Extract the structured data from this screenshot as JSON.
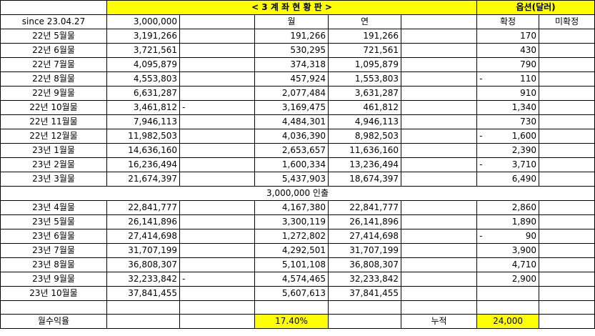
{
  "header": {
    "title": "< 3 계 좌 현 황 판 >",
    "options_title": "옵션(달러)",
    "since_label": "since 23.04.27",
    "base_amount": "3,000,000",
    "col_month": "월",
    "col_year": "연",
    "col_confirmed": "확정",
    "col_unconfirmed": "미확정"
  },
  "rows_a": [
    {
      "label": "22년 5월물",
      "balance": "3,191,266",
      "m_neg": "",
      "month": "191,266",
      "year": "191,266",
      "o_neg": "",
      "confirmed": "170"
    },
    {
      "label": "22년 6월물",
      "balance": "3,721,561",
      "m_neg": "",
      "month": "530,295",
      "year": "721,561",
      "o_neg": "",
      "confirmed": "430"
    },
    {
      "label": "22년 7월물",
      "balance": "4,095,879",
      "m_neg": "",
      "month": "374,318",
      "year": "1,095,879",
      "o_neg": "",
      "confirmed": "790"
    },
    {
      "label": "22년 8월물",
      "balance": "4,553,803",
      "m_neg": "",
      "month": "457,924",
      "year": "1,553,803",
      "o_neg": "-",
      "confirmed": "110"
    },
    {
      "label": "22년 9월물",
      "balance": "6,631,287",
      "m_neg": "",
      "month": "2,077,484",
      "year": "3,631,287",
      "o_neg": "",
      "confirmed": "910"
    },
    {
      "label": "22년 10월물",
      "balance": "3,461,812",
      "m_neg": "-",
      "month": "3,169,475",
      "year": "461,812",
      "o_neg": "",
      "confirmed": "1,340"
    },
    {
      "label": "22년 11월물",
      "balance": "7,946,113",
      "m_neg": "",
      "month": "4,484,301",
      "year": "4,946,113",
      "o_neg": "",
      "confirmed": "730"
    },
    {
      "label": "22년 12월물",
      "balance": "11,982,503",
      "m_neg": "",
      "month": "4,036,390",
      "year": "8,982,503",
      "o_neg": "-",
      "confirmed": "1,600"
    },
    {
      "label": "23년 1월물",
      "balance": "14,636,160",
      "m_neg": "",
      "month": "2,653,657",
      "year": "11,636,160",
      "o_neg": "",
      "confirmed": "2,390"
    },
    {
      "label": "23년 2월물",
      "balance": "16,236,494",
      "m_neg": "",
      "month": "1,600,334",
      "year": "13,236,494",
      "o_neg": "-",
      "confirmed": "3,710"
    },
    {
      "label": "23년 3월물",
      "balance": "21,674,397",
      "m_neg": "",
      "month": "5,437,903",
      "year": "18,674,397",
      "o_neg": "",
      "confirmed": "6,490"
    }
  ],
  "withdrawal_note": "3,000,000 인출",
  "rows_b": [
    {
      "label": "23년 4월물",
      "balance": "22,841,777",
      "m_neg": "",
      "month": "4,167,380",
      "year": "22,841,777",
      "o_neg": "",
      "confirmed": "2,860"
    },
    {
      "label": "23년 5월물",
      "balance": "26,141,896",
      "m_neg": "",
      "month": "3,300,119",
      "year": "26,141,896",
      "o_neg": "",
      "confirmed": "1,890"
    },
    {
      "label": "23년 6월물",
      "balance": "27,414,698",
      "m_neg": "",
      "month": "1,272,802",
      "year": "27,414,698",
      "o_neg": "-",
      "confirmed": "90"
    },
    {
      "label": "23년 7월물",
      "balance": "31,707,199",
      "m_neg": "",
      "month": "4,292,501",
      "year": "31,707,199",
      "o_neg": "",
      "confirmed": "3,900"
    },
    {
      "label": "23년 8월물",
      "balance": "36,808,307",
      "m_neg": "",
      "month": "5,101,108",
      "year": "36,808,307",
      "o_neg": "",
      "confirmed": "4,710"
    },
    {
      "label": "23년 9월물",
      "balance": "32,233,842",
      "m_neg": "-",
      "month": "4,574,465",
      "year": "32,233,842",
      "o_neg": "",
      "confirmed": "2,900"
    },
    {
      "label": "23년 10월물",
      "balance": "37,841,455",
      "m_neg": "",
      "month": "5,607,613",
      "year": "37,841,455",
      "o_neg": "",
      "confirmed": ""
    }
  ],
  "footer": {
    "return_label": "월수익율",
    "return_value": "17.40%",
    "cumulative_label": "누적",
    "cumulative_value": "24,000"
  },
  "colors": {
    "highlight": "#ffff00",
    "border": "#000000"
  }
}
